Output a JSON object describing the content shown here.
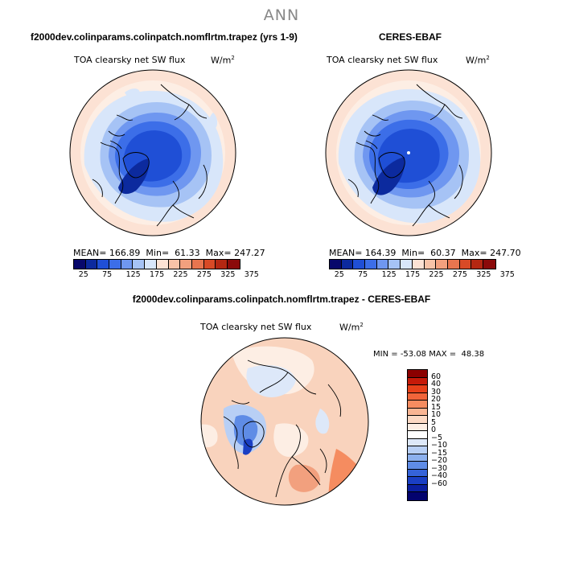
{
  "season": "ANN",
  "colors": {
    "abs_scale": [
      "#08086b",
      "#0c2a9e",
      "#1f4fd6",
      "#3c6ee8",
      "#6f97f0",
      "#a6c3f5",
      "#d8e6fa",
      "#fce2d4",
      "#f7c3a8",
      "#f2a07e",
      "#e8754f",
      "#d84a26",
      "#b42712",
      "#8b0a0a"
    ],
    "diff_scale": [
      "#8b0000",
      "#c61a09",
      "#e8411a",
      "#f2653a",
      "#f58c60",
      "#f9b593",
      "#fcd9c4",
      "#fdeee4",
      "#ffffff",
      "#dde8f9",
      "#b8cff5",
      "#8cb0ee",
      "#5f8ce6",
      "#3563d9",
      "#1a3fc4",
      "#0b1fa0",
      "#03036e"
    ]
  },
  "chart_data": [
    {
      "type": "heatmap",
      "panel": "top-left",
      "header": "f2000dev.colinparams.colinpatch.nomflrtm.trapez (yrs 1-9)",
      "title": "TOA clearsky net SW flux",
      "units_base": "W/m",
      "units_exp": "2",
      "projection": "north polar stereographic",
      "stats": {
        "mean_label": "MEAN=",
        "mean": "166.89",
        "min_label": "Min=",
        "min": "61.33",
        "max_label": "Max=",
        "max": "247.27"
      },
      "colorbar_ticks": [
        "25",
        "75",
        "125",
        "175",
        "225",
        "275",
        "325",
        "375"
      ]
    },
    {
      "type": "heatmap",
      "panel": "top-right",
      "header": "CERES-EBAF",
      "title": "TOA clearsky net SW flux",
      "units_base": "W/m",
      "units_exp": "2",
      "projection": "north polar stereographic",
      "stats": {
        "mean_label": "MEAN=",
        "mean": "164.39",
        "min_label": "Min=",
        "min": "60.37",
        "max_label": "Max=",
        "max": "247.70"
      },
      "colorbar_ticks": [
        "25",
        "75",
        "125",
        "175",
        "225",
        "275",
        "325",
        "375"
      ]
    },
    {
      "type": "heatmap",
      "panel": "bottom",
      "header": "f2000dev.colinparams.colinpatch.nomflrtm.trapez - CERES-EBAF",
      "title": "TOA clearsky net SW flux",
      "units_base": "W/m",
      "units_exp": "2",
      "projection": "north polar stereographic",
      "stats": {
        "min_label": "MIN =",
        "min": "-53.08",
        "max_label": "MAX =",
        "max": "48.38"
      },
      "colorbar_ticks": [
        "60",
        "40",
        "30",
        "20",
        "15",
        "10",
        "5",
        "0",
        "−5",
        "−10",
        "−15",
        "−20",
        "−30",
        "−40",
        "−60"
      ]
    }
  ]
}
